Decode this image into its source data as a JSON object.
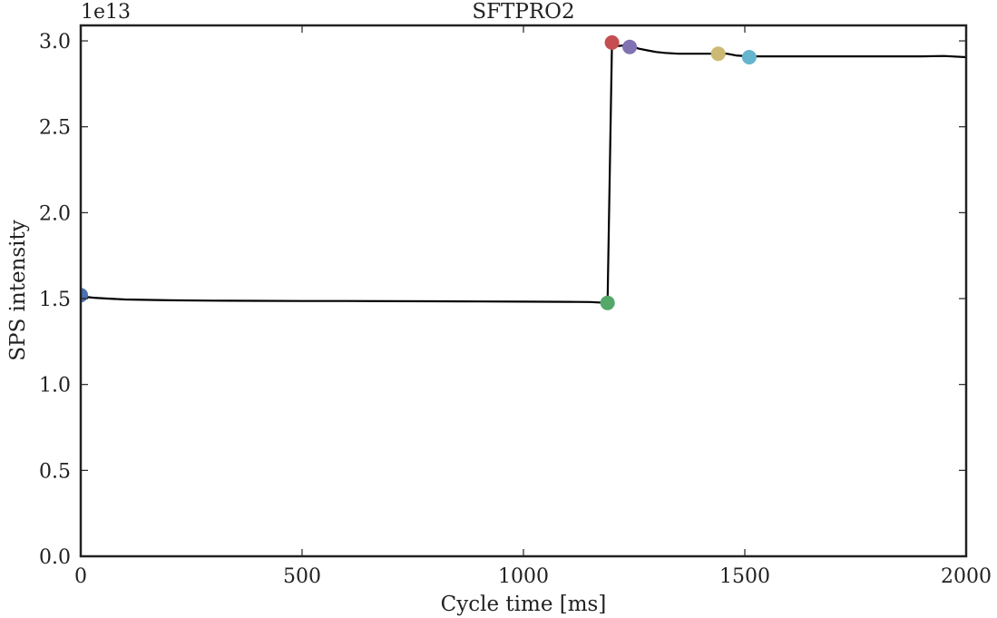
{
  "chart_data": {
    "type": "line",
    "title": "SFTPRO2",
    "xlabel": "Cycle time [ms]",
    "ylabel": "SPS intensity",
    "y_offset_label": "1e13",
    "xlim": [
      0,
      2000
    ],
    "ylim": [
      0,
      30000000000000.0
    ],
    "xticks": [
      {
        "value": 0,
        "label": "0"
      },
      {
        "value": 500,
        "label": "500"
      },
      {
        "value": 1000,
        "label": "1000"
      },
      {
        "value": 1500,
        "label": "1500"
      },
      {
        "value": 2000,
        "label": "2000"
      }
    ],
    "yticks": [
      {
        "value": 0.0,
        "label": "0.0"
      },
      {
        "value": 5000000000000.0,
        "label": "0.5"
      },
      {
        "value": 10000000000000.0,
        "label": "1.0"
      },
      {
        "value": 15000000000000.0,
        "label": "1.5"
      },
      {
        "value": 20000000000000.0,
        "label": "2.0"
      },
      {
        "value": 25000000000000.0,
        "label": "2.5"
      },
      {
        "value": 30000000000000.0,
        "label": "3.0"
      }
    ],
    "grid": false,
    "series": [
      {
        "color": "#000000",
        "x": [
          0,
          10,
          30,
          60,
          100,
          200,
          300,
          400,
          500,
          600,
          700,
          800,
          900,
          1000,
          1100,
          1150,
          1190,
          1200,
          1205,
          1215,
          1230,
          1245,
          1260,
          1280,
          1300,
          1320,
          1350,
          1400,
          1440,
          1460,
          1480,
          1510,
          1550,
          1600,
          1700,
          1800,
          1900,
          1950,
          2000
        ],
        "y": [
          15200000000000.0,
          15100000000000.0,
          15050000000000.0,
          15000000000000.0,
          14950000000000.0,
          14900000000000.0,
          14880000000000.0,
          14870000000000.0,
          14860000000000.0,
          14860000000000.0,
          14850000000000.0,
          14840000000000.0,
          14830000000000.0,
          14820000000000.0,
          14810000000000.0,
          14800000000000.0,
          14750000000000.0,
          29900000000000.0,
          29750000000000.0,
          29700000000000.0,
          29750000000000.0,
          29700000000000.0,
          29550000000000.0,
          29450000000000.0,
          29350000000000.0,
          29300000000000.0,
          29250000000000.0,
          29250000000000.0,
          29250000000000.0,
          29250000000000.0,
          29150000000000.0,
          29100000000000.0,
          29100000000000.0,
          29100000000000.0,
          29100000000000.0,
          29100000000000.0,
          29100000000000.0,
          29120000000000.0,
          29050000000000.0
        ]
      }
    ],
    "markers": [
      {
        "x": 0,
        "y": 15200000000000.0,
        "color": "#4c72b0"
      },
      {
        "x": 1190,
        "y": 14750000000000.0,
        "color": "#55a868"
      },
      {
        "x": 1200,
        "y": 29900000000000.0,
        "color": "#c44e52"
      },
      {
        "x": 1240,
        "y": 29650000000000.0,
        "color": "#8172b2"
      },
      {
        "x": 1440,
        "y": 29250000000000.0,
        "color": "#ccb974"
      },
      {
        "x": 1510,
        "y": 29050000000000.0,
        "color": "#64b5cd"
      }
    ]
  }
}
